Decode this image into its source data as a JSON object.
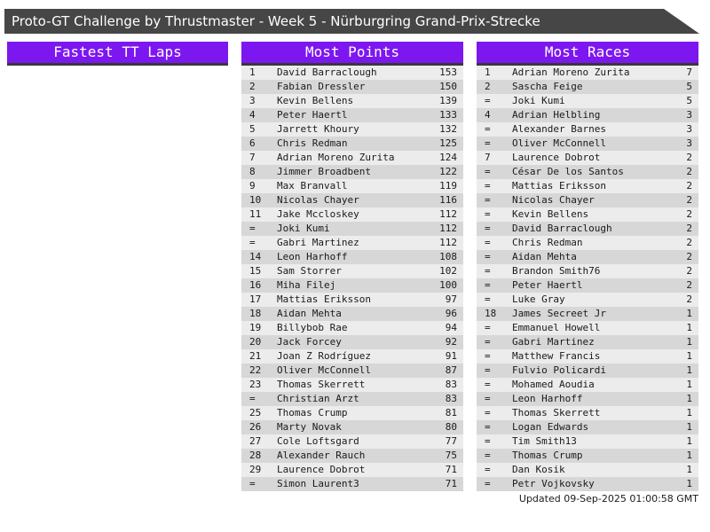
{
  "banner": {
    "title": "Proto-GT Challenge by Thrustmaster - Week 5 - Nürburgring Grand-Prix-Strecke"
  },
  "footer": {
    "updated": "Updated 09-Sep-2025 01:00:58 GMT"
  },
  "colors": {
    "accent_purple": "#7d17f0",
    "banner_gray": "#464646",
    "underline_dark": "#383838",
    "row_light": "#ececec",
    "row_dark": "#d7d7d7"
  },
  "columns": [
    {
      "id": "fastest-tt-laps",
      "header": "Fastest TT Laps",
      "rows": []
    },
    {
      "id": "most-points",
      "header": "Most Points",
      "rows": [
        {
          "rank": "1",
          "name": "David Barraclough",
          "value": "153"
        },
        {
          "rank": "2",
          "name": "Fabian Dressler",
          "value": "150"
        },
        {
          "rank": "3",
          "name": "Kevin Bellens",
          "value": "139"
        },
        {
          "rank": "4",
          "name": "Peter Haertl",
          "value": "133"
        },
        {
          "rank": "5",
          "name": "Jarrett Khoury",
          "value": "132"
        },
        {
          "rank": "6",
          "name": "Chris Redman",
          "value": "125"
        },
        {
          "rank": "7",
          "name": "Adrian Moreno Zurita",
          "value": "124"
        },
        {
          "rank": "8",
          "name": "Jimmer Broadbent",
          "value": "122"
        },
        {
          "rank": "9",
          "name": "Max Branvall",
          "value": "119"
        },
        {
          "rank": "10",
          "name": "Nicolas Chayer",
          "value": "116"
        },
        {
          "rank": "11",
          "name": "Jake Mccloskey",
          "value": "112"
        },
        {
          "rank": "=",
          "name": "Joki Kumi",
          "value": "112"
        },
        {
          "rank": "=",
          "name": "Gabri Martinez",
          "value": "112"
        },
        {
          "rank": "14",
          "name": "Leon Harhoff",
          "value": "108"
        },
        {
          "rank": "15",
          "name": "Sam Storrer",
          "value": "102"
        },
        {
          "rank": "16",
          "name": "Miha Filej",
          "value": "100"
        },
        {
          "rank": "17",
          "name": "Mattias Eriksson",
          "value": "97"
        },
        {
          "rank": "18",
          "name": "Aidan Mehta",
          "value": "96"
        },
        {
          "rank": "19",
          "name": "Billybob Rae",
          "value": "94"
        },
        {
          "rank": "20",
          "name": "Jack Forcey",
          "value": "92"
        },
        {
          "rank": "21",
          "name": "Joan Z Rodríguez",
          "value": "91"
        },
        {
          "rank": "22",
          "name": "Oliver McConnell",
          "value": "87"
        },
        {
          "rank": "23",
          "name": "Thomas Skerrett",
          "value": "83"
        },
        {
          "rank": "=",
          "name": "Christian Arzt",
          "value": "83"
        },
        {
          "rank": "25",
          "name": "Thomas Crump",
          "value": "81"
        },
        {
          "rank": "26",
          "name": "Marty Novak",
          "value": "80"
        },
        {
          "rank": "27",
          "name": "Cole Loftsgard",
          "value": "77"
        },
        {
          "rank": "28",
          "name": "Alexander Rauch",
          "value": "75"
        },
        {
          "rank": "29",
          "name": "Laurence Dobrot",
          "value": "71"
        },
        {
          "rank": "=",
          "name": "Simon Laurent3",
          "value": "71"
        }
      ]
    },
    {
      "id": "most-races",
      "header": "Most Races",
      "rows": [
        {
          "rank": "1",
          "name": "Adrian Moreno Zurita",
          "value": "7"
        },
        {
          "rank": "2",
          "name": "Sascha Feige",
          "value": "5"
        },
        {
          "rank": "=",
          "name": "Joki Kumi",
          "value": "5"
        },
        {
          "rank": "4",
          "name": "Adrian Helbling",
          "value": "3"
        },
        {
          "rank": "=",
          "name": "Alexander Barnes",
          "value": "3"
        },
        {
          "rank": "=",
          "name": "Oliver McConnell",
          "value": "3"
        },
        {
          "rank": "7",
          "name": "Laurence Dobrot",
          "value": "2"
        },
        {
          "rank": "=",
          "name": "César De los Santos",
          "value": "2"
        },
        {
          "rank": "=",
          "name": "Mattias Eriksson",
          "value": "2"
        },
        {
          "rank": "=",
          "name": "Nicolas Chayer",
          "value": "2"
        },
        {
          "rank": "=",
          "name": "Kevin Bellens",
          "value": "2"
        },
        {
          "rank": "=",
          "name": "David Barraclough",
          "value": "2"
        },
        {
          "rank": "=",
          "name": "Chris Redman",
          "value": "2"
        },
        {
          "rank": "=",
          "name": "Aidan Mehta",
          "value": "2"
        },
        {
          "rank": "=",
          "name": "Brandon Smith76",
          "value": "2"
        },
        {
          "rank": "=",
          "name": "Peter Haertl",
          "value": "2"
        },
        {
          "rank": "=",
          "name": "Luke Gray",
          "value": "2"
        },
        {
          "rank": "18",
          "name": "James Secreet Jr",
          "value": "1"
        },
        {
          "rank": "=",
          "name": "Emmanuel Howell",
          "value": "1"
        },
        {
          "rank": "=",
          "name": "Gabri Martinez",
          "value": "1"
        },
        {
          "rank": "=",
          "name": "Matthew Francis",
          "value": "1"
        },
        {
          "rank": "=",
          "name": "Fulvio Policardi",
          "value": "1"
        },
        {
          "rank": "=",
          "name": "Mohamed Aoudia",
          "value": "1"
        },
        {
          "rank": "=",
          "name": "Leon Harhoff",
          "value": "1"
        },
        {
          "rank": "=",
          "name": "Thomas Skerrett",
          "value": "1"
        },
        {
          "rank": "=",
          "name": "Logan Edwards",
          "value": "1"
        },
        {
          "rank": "=",
          "name": "Tim Smith13",
          "value": "1"
        },
        {
          "rank": "=",
          "name": "Thomas Crump",
          "value": "1"
        },
        {
          "rank": "=",
          "name": "Dan Kosik",
          "value": "1"
        },
        {
          "rank": "=",
          "name": "Petr Vojkovsky",
          "value": "1"
        }
      ]
    }
  ]
}
